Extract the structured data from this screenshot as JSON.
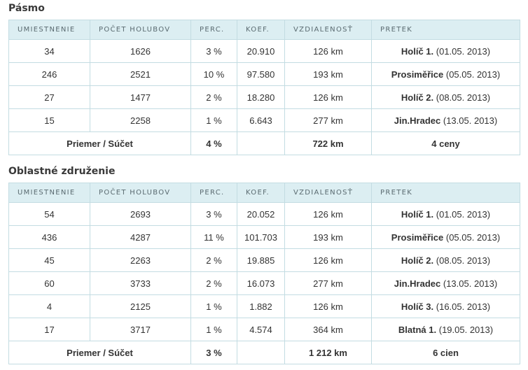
{
  "sections": [
    {
      "title": "Pásmo",
      "table": {
        "headers": [
          "UMIESTNENIE",
          "POČET HOLUBOV",
          "PERC.",
          "KOEF.",
          "VZDIALENOSŤ",
          "PRETEK"
        ],
        "rows": [
          [
            "34",
            "1626",
            "3 %",
            "20.910",
            "126 km",
            {
              "name": "Holíč 1.",
              "date": "(01.05. 2013)"
            }
          ],
          [
            "246",
            "2521",
            "10 %",
            "97.580",
            "193 km",
            {
              "name": "Prosiměřice",
              "date": "(05.05. 2013)"
            }
          ],
          [
            "27",
            "1477",
            "2 %",
            "18.280",
            "126 km",
            {
              "name": "Holíč 2.",
              "date": "(08.05. 2013)"
            }
          ],
          [
            "15",
            "2258",
            "1 %",
            "6.643",
            "277 km",
            {
              "name": "Jin.Hradec",
              "date": "(13.05. 2013)"
            }
          ]
        ],
        "footer": {
          "label": "Priemer / Súčet",
          "perc": "4 %",
          "distance": "722 km",
          "prizes": "4 ceny"
        }
      }
    },
    {
      "title": "Oblastné združenie",
      "table": {
        "headers": [
          "UMIESTNENIE",
          "POČET HOLUBOV",
          "PERC.",
          "KOEF.",
          "VZDIALENOSŤ",
          "PRETEK"
        ],
        "rows": [
          [
            "54",
            "2693",
            "3 %",
            "20.052",
            "126 km",
            {
              "name": "Holíč 1.",
              "date": "(01.05. 2013)"
            }
          ],
          [
            "436",
            "4287",
            "11 %",
            "101.703",
            "193 km",
            {
              "name": "Prosiměřice",
              "date": "(05.05. 2013)"
            }
          ],
          [
            "45",
            "2263",
            "2 %",
            "19.885",
            "126 km",
            {
              "name": "Holíč 2.",
              "date": "(08.05. 2013)"
            }
          ],
          [
            "60",
            "3733",
            "2 %",
            "16.073",
            "277 km",
            {
              "name": "Jin.Hradec",
              "date": "(13.05. 2013)"
            }
          ],
          [
            "4",
            "2125",
            "1 %",
            "1.882",
            "126 km",
            {
              "name": "Holíč 3.",
              "date": "(16.05. 2013)"
            }
          ],
          [
            "17",
            "3717",
            "1 %",
            "4.574",
            "364 km",
            {
              "name": "Blatná 1.",
              "date": "(19.05. 2013)"
            }
          ]
        ],
        "footer": {
          "label": "Priemer / Súčet",
          "perc": "3 %",
          "distance": "1 212 km",
          "prizes": "6 cien"
        }
      }
    }
  ]
}
